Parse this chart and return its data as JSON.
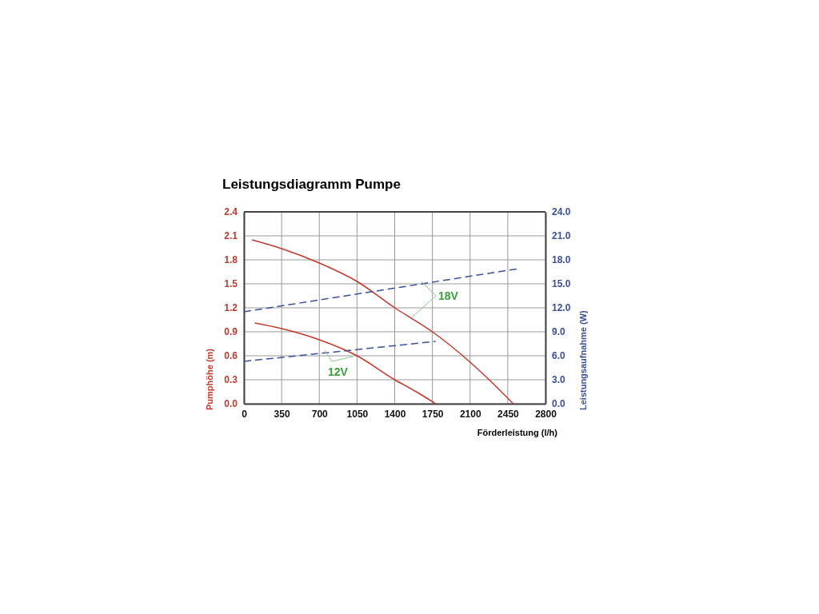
{
  "chart_data": {
    "type": "line",
    "title": "Leistungsdiagramm Pumpe",
    "xlabel": "Förderleistung (l/h)",
    "ylabel": "Pumphöhe (m)",
    "y2label": "Leistungsaufnahme (W)",
    "xlim": [
      0,
      2800
    ],
    "xticks": [
      0,
      350,
      700,
      1050,
      1400,
      1750,
      2100,
      2450,
      2800
    ],
    "ylim": [
      0,
      2.4
    ],
    "yticks": [
      "0.0",
      0.3,
      0.6,
      0.9,
      1.2,
      1.5,
      1.8,
      2.1,
      2.4
    ],
    "y2lim": [
      0,
      24
    ],
    "y2ticks": [
      {
        "value": 0,
        "label": "0.0"
      },
      {
        "value": 3,
        "label": "3.0"
      },
      {
        "value": 6,
        "label": "6.0"
      },
      {
        "value": 9,
        "label": "9.0"
      },
      {
        "value": 12,
        "label": "12.0"
      },
      {
        "value": 15,
        "label": "15.0"
      },
      {
        "value": 18,
        "label": "18.0"
      },
      {
        "value": 21,
        "label": "21.0"
      },
      {
        "value": 24,
        "label": "24.0"
      }
    ],
    "grid": true,
    "marker": "none",
    "series": [
      {
        "color": "#c0392b",
        "line_style": "solid",
        "x": [
          75,
          350,
          700,
          1050,
          1400,
          1750,
          2100,
          2300,
          2500
        ],
        "values": [
          2.05,
          1.94,
          1.76,
          1.53,
          1.2,
          0.9,
          0.52,
          0.27,
          0
        ]
      },
      {
        "color": "#c0392b",
        "line_style": "solid",
        "x": [
          100,
          350,
          700,
          1050,
          1400,
          1600,
          1780
        ],
        "values": [
          1.01,
          0.94,
          0.8,
          0.6,
          0.3,
          0.15,
          0
        ]
      },
      {
        "color": "#3a4f9c",
        "line_style": "dashed",
        "axis": "y2",
        "x": [
          0,
          2550
        ],
        "values": [
          11.5,
          16.9
        ]
      },
      {
        "color": "#3a4f9c",
        "line_style": "dashed",
        "axis": "y2",
        "x": [
          0,
          1780
        ],
        "values": [
          5.3,
          7.8
        ]
      }
    ],
    "annotations": [
      "18V",
      "12V"
    ]
  }
}
